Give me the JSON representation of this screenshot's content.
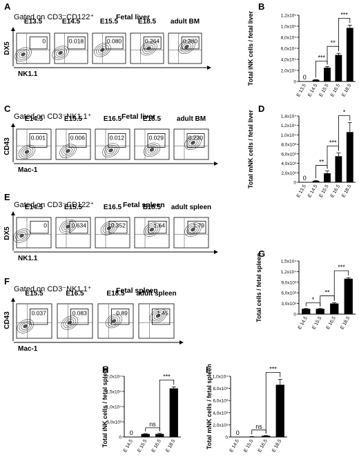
{
  "panels": {
    "A": {
      "letter": "A",
      "gate": "Gated on CD3⁻CD122⁺",
      "tissue": "Fetal liver",
      "ylabel": "DX5",
      "xlabel": "NK1.1",
      "plots": [
        {
          "label": "E13.5",
          "value": "0"
        },
        {
          "label": "E14.5",
          "value": "0.018"
        },
        {
          "label": "E15.5",
          "value": "0.080"
        },
        {
          "label": "E18.5",
          "value": "0.264"
        },
        {
          "label": "adult BM",
          "value": "0.380"
        }
      ]
    },
    "C": {
      "letter": "C",
      "gate": "Gated on CD3⁻NK1.1⁺",
      "tissue": "Fetal liver",
      "ylabel": "CD43",
      "xlabel": "Mac-1",
      "plots": [
        {
          "label": "E14.5",
          "value": "0.001"
        },
        {
          "label": "E15.5",
          "value": "0.006"
        },
        {
          "label": "E16.5",
          "value": "0.012"
        },
        {
          "label": "E18.5",
          "value": "0.029"
        },
        {
          "label": "adult BM",
          "value": "0.230"
        }
      ]
    },
    "E": {
      "letter": "E",
      "gate": "Gated on CD3⁻CD122⁺",
      "tissue": "Fetal  spleen",
      "ylabel": "DX5",
      "xlabel": "NK1.1",
      "plots": [
        {
          "label": "E14.5",
          "value": "0"
        },
        {
          "label": "E15.5",
          "value": "0.634"
        },
        {
          "label": "E16.5",
          "value": "0.352"
        },
        {
          "label": "E18.5",
          "value": "1.64"
        },
        {
          "label": "adult spleen",
          "value": "1.79"
        }
      ]
    },
    "F": {
      "letter": "F",
      "gate": "Gated on CD3⁻NK1.1⁺",
      "tissue": "Fetal  spleen",
      "ylabel": "CD43",
      "xlabel": "Mac-1",
      "plots": [
        {
          "label": "E15.5",
          "value": "0.037"
        },
        {
          "label": "E16.5",
          "value": "0.083"
        },
        {
          "label": "E18.5",
          "value": "0.89"
        },
        {
          "label": "adult spleen",
          "value": "1.45"
        }
      ]
    }
  },
  "chart_data": [
    {
      "letter": "B",
      "type": "bar",
      "ylabel": "Total iNK cells / fetal liver",
      "categories": [
        "E 13.5",
        "E 14.5",
        "E 15.5",
        "E 16.5",
        "E 18.5"
      ],
      "values": [
        0,
        3000,
        25000,
        48000,
        97000
      ],
      "errors": [
        0,
        500,
        2000,
        3000,
        5000
      ],
      "zero_label": "0",
      "ticks": [
        "0",
        "2,0x10⁴",
        "4,0x10⁴",
        "6,0x10⁴",
        "8,0x10⁴",
        "1,0x10⁵",
        "1,2x10⁵"
      ],
      "ylim": [
        0,
        120000
      ],
      "significance": [
        {
          "from": 1,
          "to": 2,
          "label": "***"
        },
        {
          "from": 2,
          "to": 3,
          "label": "**"
        },
        {
          "from": 3,
          "to": 4,
          "label": "***"
        }
      ]
    },
    {
      "letter": "D",
      "type": "bar",
      "ylabel": "Total mNK cells / fetal liver",
      "categories": [
        "E 13.5",
        "E 14.5",
        "E 15.5",
        "E 16.5",
        "E 18.5"
      ],
      "values": [
        0,
        300,
        1900,
        5500,
        10600
      ],
      "errors": [
        0,
        100,
        500,
        700,
        2000
      ],
      "zero_label": "0",
      "ticks": [
        "0",
        "2,0x10³",
        "4,0x10³",
        "6,0x10³",
        "8,0x10³",
        "1,0x10⁴",
        "1,2x10⁴",
        "1,4x10⁴"
      ],
      "ylim": [
        0,
        14000
      ],
      "significance": [
        {
          "from": 1,
          "to": 2,
          "label": "**"
        },
        {
          "from": 2,
          "to": 3,
          "label": "***"
        },
        {
          "from": 3,
          "to": 4,
          "label": "*"
        }
      ]
    },
    {
      "letter": "G",
      "type": "bar",
      "ylabel": "Total cells  / fetal spleen",
      "categories": [
        "E 14.5",
        "E 15.5",
        "E 16.5",
        "E 18.5"
      ],
      "values": [
        1500,
        1500,
        3000,
        10000
      ],
      "errors": [
        100,
        100,
        200,
        300
      ],
      "ticks": [
        "0",
        "3,0x10³",
        "6,0x10³",
        "9,0x10³",
        "1,2x10⁴",
        "1,5x10⁴"
      ],
      "ylim": [
        0,
        15000
      ],
      "significance": [
        {
          "from": 0,
          "to": 1,
          "label": "*"
        },
        {
          "from": 1,
          "to": 2,
          "label": "**"
        },
        {
          "from": 2,
          "to": 3,
          "label": "***"
        }
      ]
    },
    {
      "letter": "H",
      "type": "bar",
      "ylabel": "Total iNK cells / fetal spleen",
      "categories": [
        "E 14.5",
        "E 15.5",
        "E 16.5",
        "E 18.5"
      ],
      "values": [
        0,
        1000,
        1000,
        16000
      ],
      "errors": [
        0,
        100,
        200,
        500
      ],
      "zero_label": "0",
      "ticks": [
        "0",
        "5,0x10³",
        "1,0x10⁴",
        "1,5x10⁴",
        "2,0x10⁴"
      ],
      "ylim": [
        0,
        20000
      ],
      "significance": [
        {
          "from": 1,
          "to": 2,
          "label": "ns"
        },
        {
          "from": 2,
          "to": 3,
          "label": "***"
        }
      ]
    },
    {
      "letter": "I",
      "type": "bar",
      "ylabel": "Total mNK cells / fetal spleen",
      "categories": [
        "E 14.5",
        "E 15.5",
        "E 16.5",
        "E 18.5"
      ],
      "values": [
        0,
        60,
        200,
        8600
      ],
      "errors": [
        0,
        20,
        50,
        900
      ],
      "zero_label": "0",
      "ticks": [
        "0",
        "2,0x10³",
        "4,0x10³",
        "6,0x10³",
        "8,0x10³",
        "1,0x10⁴"
      ],
      "ylim": [
        0,
        10000
      ],
      "significance": [
        {
          "from": 1,
          "to": 2,
          "label": "ns"
        },
        {
          "from": 2,
          "to": 3,
          "label": "***"
        }
      ]
    }
  ]
}
